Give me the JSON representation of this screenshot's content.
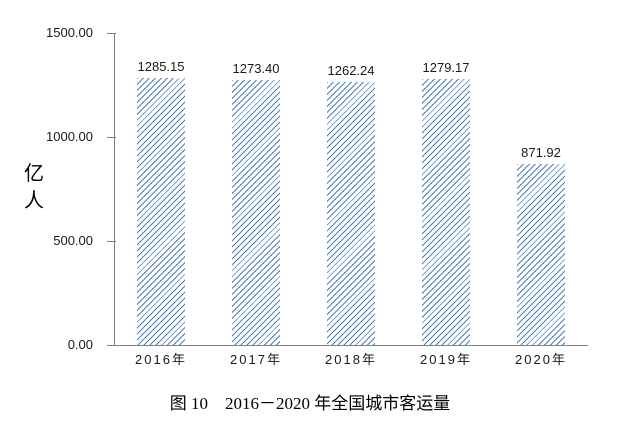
{
  "chart_data": {
    "type": "bar",
    "title": "图 10　2016－2020 年全国城市客运量",
    "ylabel": "亿人",
    "xlabel": "",
    "categories": [
      "2016年",
      "2017年",
      "2018年",
      "2019年",
      "2020年"
    ],
    "values": [
      1285.15,
      1273.4,
      1262.24,
      1279.17,
      871.92
    ],
    "value_labels": [
      "1285.15",
      "1273.40",
      "1262.24",
      "1279.17",
      "871.92"
    ],
    "ylim": [
      0,
      1500
    ],
    "yticks": [
      {
        "value": 0,
        "label": "0.00"
      },
      {
        "value": 500,
        "label": "500.00"
      },
      {
        "value": 1000,
        "label": "1000.00"
      },
      {
        "value": 1500,
        "label": "1500.00"
      }
    ],
    "grid": false,
    "legend_position": "none",
    "bar_fill_style": "diagonal-hatch",
    "bar_color": "#4f81bd",
    "axis_color": "#808080",
    "text_color": "#1a1a1a"
  }
}
